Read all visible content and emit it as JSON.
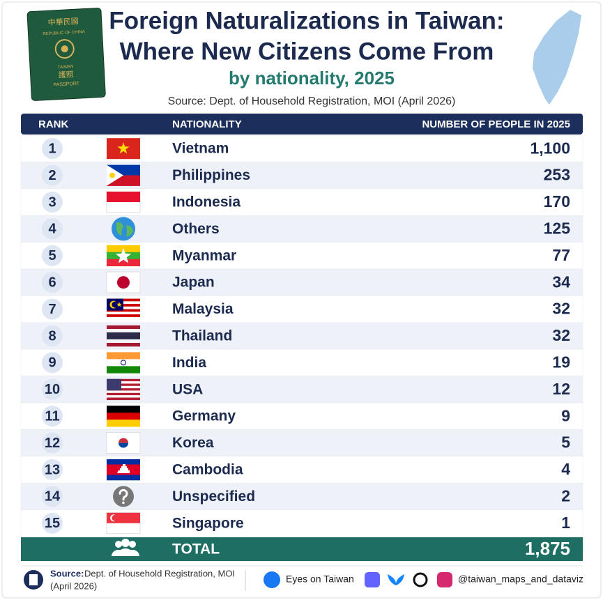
{
  "header": {
    "title_lines": [
      "Foreign Naturalizations in Taiwan:",
      "Where New Citizens Come From"
    ],
    "subtitle": "by nationality, 2025",
    "source": "Source: Dept. of Household Registration, MOI (April 2026)"
  },
  "passport": {
    "lines": [
      "中華民國",
      "REPUBLIC OF CHINA",
      "TAIWAN",
      "護照",
      "PASSPORT"
    ]
  },
  "table": {
    "columns": [
      "RANK",
      "NATIONALITY",
      "NUMBER OF PEOPLE IN 2025"
    ],
    "rows": [
      [
        "1",
        "Vietnam",
        "1,100"
      ],
      [
        "2",
        "Philippines",
        "253"
      ],
      [
        "3",
        "Indonesia",
        "170"
      ],
      [
        "4",
        "Others",
        "125"
      ],
      [
        "5",
        "Myanmar",
        "77"
      ],
      [
        "6",
        "Japan",
        "34"
      ],
      [
        "7",
        "Malaysia",
        "32"
      ],
      [
        "8",
        "Thailand",
        "32"
      ],
      [
        "9",
        "India",
        "19"
      ],
      [
        "10",
        "USA",
        "12"
      ],
      [
        "11",
        "Germany",
        "9"
      ],
      [
        "12",
        "Korea",
        "5"
      ],
      [
        "13",
        "Cambodia",
        "4"
      ],
      [
        "14",
        "Unspecified",
        "2"
      ],
      [
        "15",
        "Singapore",
        "1"
      ]
    ],
    "total": [
      "TOTAL",
      "1,875"
    ]
  },
  "footer": {
    "source_label": "Source:",
    "source_lines": [
      "Dept. of Household Registration, MOI",
      "(April 2026)"
    ],
    "facebook": "Eyes on Taiwan",
    "handle": "@taiwan_maps_and_dataviz"
  }
}
